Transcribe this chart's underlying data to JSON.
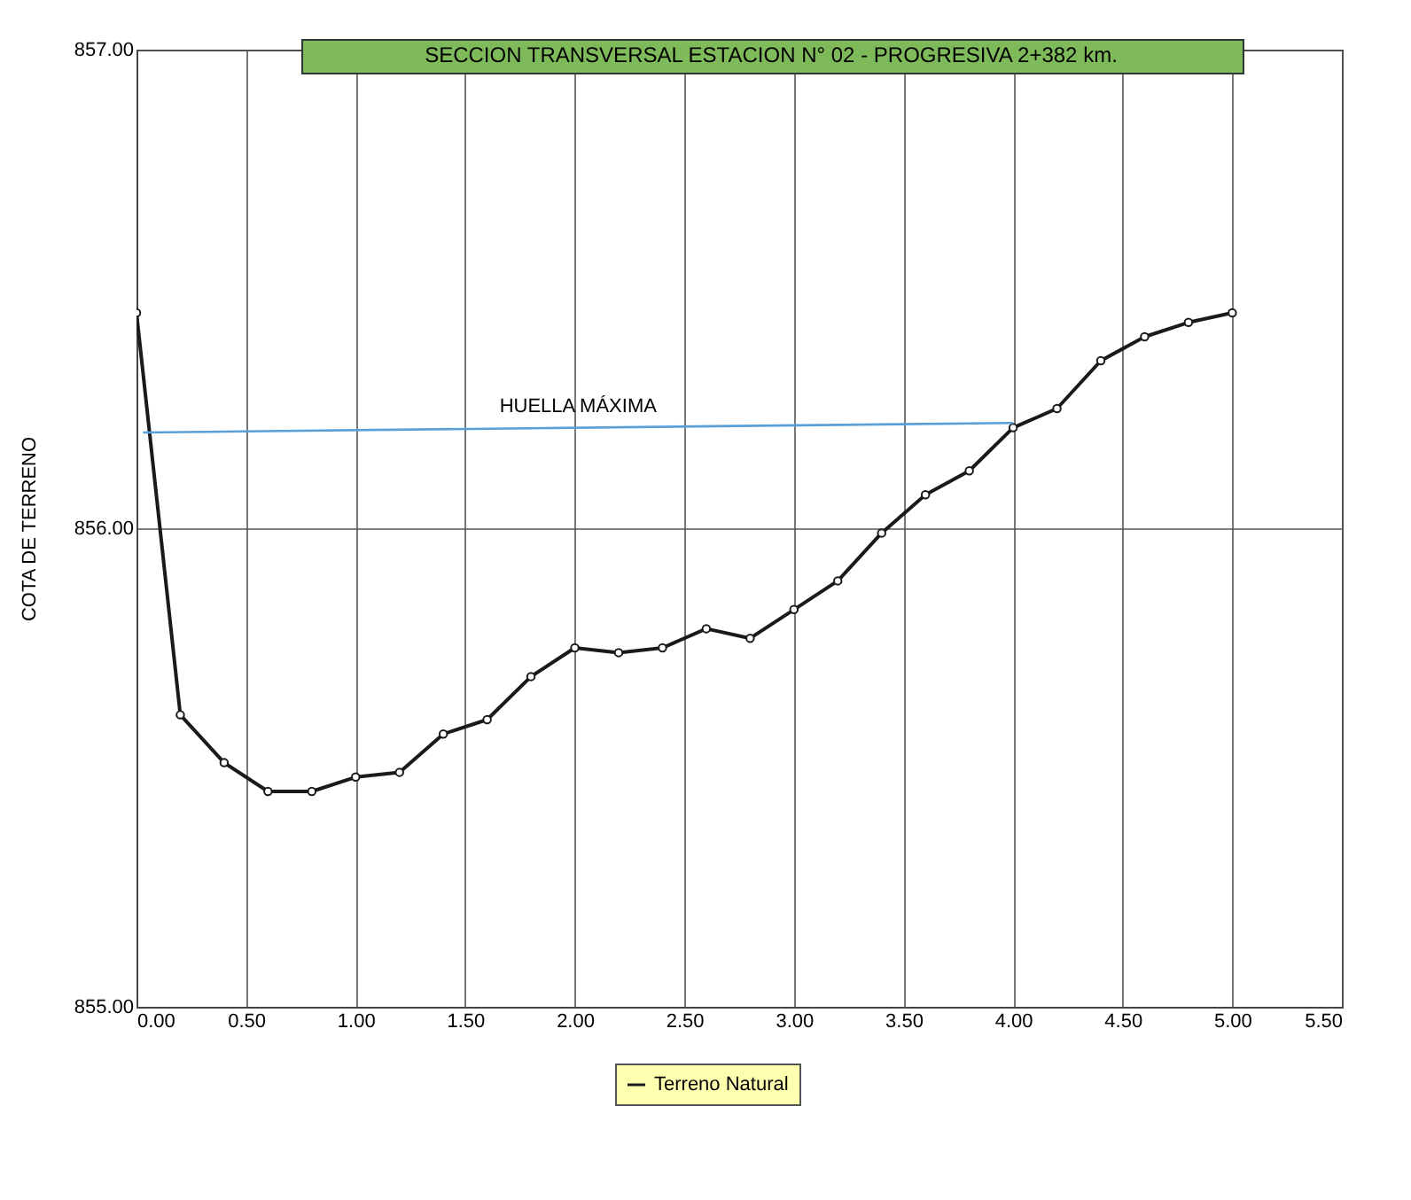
{
  "chart_data": {
    "type": "line",
    "title": "SECCION TRANSVERSAL  ESTACION N° 02 - PROGRESIVA 2+382 km.",
    "ylabel": "COTA DE TERRENO",
    "x": [
      0,
      0.2,
      0.4,
      0.6,
      0.8,
      1.0,
      1.2,
      1.4,
      1.6,
      1.8,
      2.0,
      2.2,
      2.4,
      2.6,
      2.8,
      3.0,
      3.2,
      3.4,
      3.6,
      3.8,
      4.0,
      4.2,
      4.4,
      4.6,
      4.8,
      5.0
    ],
    "series": [
      {
        "name": "Terreno Natural",
        "color": "#1a1a1a",
        "values": [
          856.45,
          855.61,
          855.51,
          855.45,
          855.45,
          855.48,
          855.49,
          855.57,
          855.6,
          855.69,
          855.75,
          855.74,
          855.75,
          855.79,
          855.77,
          855.83,
          855.89,
          855.99,
          856.07,
          856.12,
          856.21,
          856.25,
          856.35,
          856.4,
          856.43,
          856.45
        ]
      },
      {
        "name": "HUELLA MÁXIMA",
        "color": "#5aa0d8",
        "type": "line",
        "marker": "none",
        "x": [
          0.03,
          4.0
        ],
        "values": [
          856.2,
          856.22
        ]
      }
    ],
    "xlim": [
      0,
      5.5
    ],
    "xticks": [
      {
        "value": 0,
        "label": "0.00"
      },
      {
        "value": 0.5,
        "label": "0.50"
      },
      {
        "value": 1,
        "label": "1.00"
      },
      {
        "value": 1.5,
        "label": "1.50"
      },
      {
        "value": 2,
        "label": "2.00"
      },
      {
        "value": 2.5,
        "label": "2.50"
      },
      {
        "value": 3,
        "label": "3.00"
      },
      {
        "value": 3.5,
        "label": "3.50"
      },
      {
        "value": 4,
        "label": "4.00"
      },
      {
        "value": 4.5,
        "label": "4.50"
      },
      {
        "value": 5,
        "label": "5.00"
      },
      {
        "value": 5.5,
        "label": "5.50"
      }
    ],
    "ylim": [
      855,
      857
    ],
    "yticks": [
      {
        "value": 855,
        "label": "855.00"
      },
      {
        "value": 856,
        "label": "856.00"
      },
      {
        "value": 857,
        "label": "857.00"
      }
    ],
    "grid": true,
    "legend": "bottom",
    "marker": "circle",
    "line_style": "solid"
  }
}
